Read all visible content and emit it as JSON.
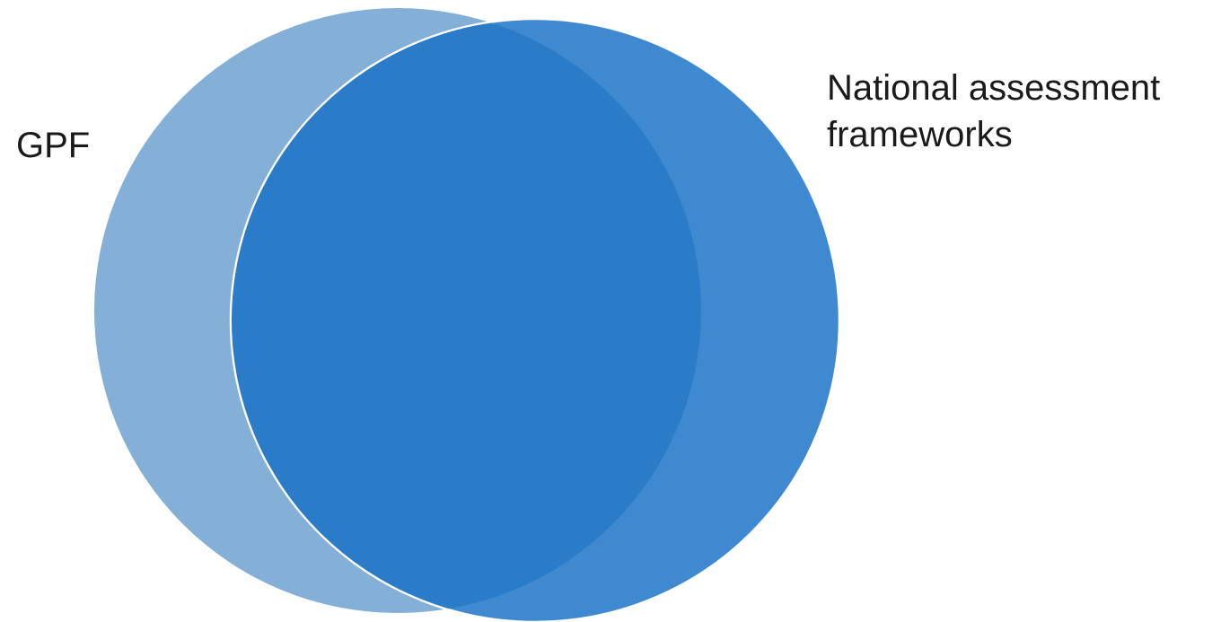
{
  "venn": {
    "left_set": {
      "label": "GPF",
      "color": "#84B0D8"
    },
    "right_set": {
      "label_line1": "National assessment",
      "label_line2": "frameworks",
      "color": "#3F89D0",
      "outline": "#FFFFFF"
    },
    "overlap_color": "#2A7CC8"
  }
}
